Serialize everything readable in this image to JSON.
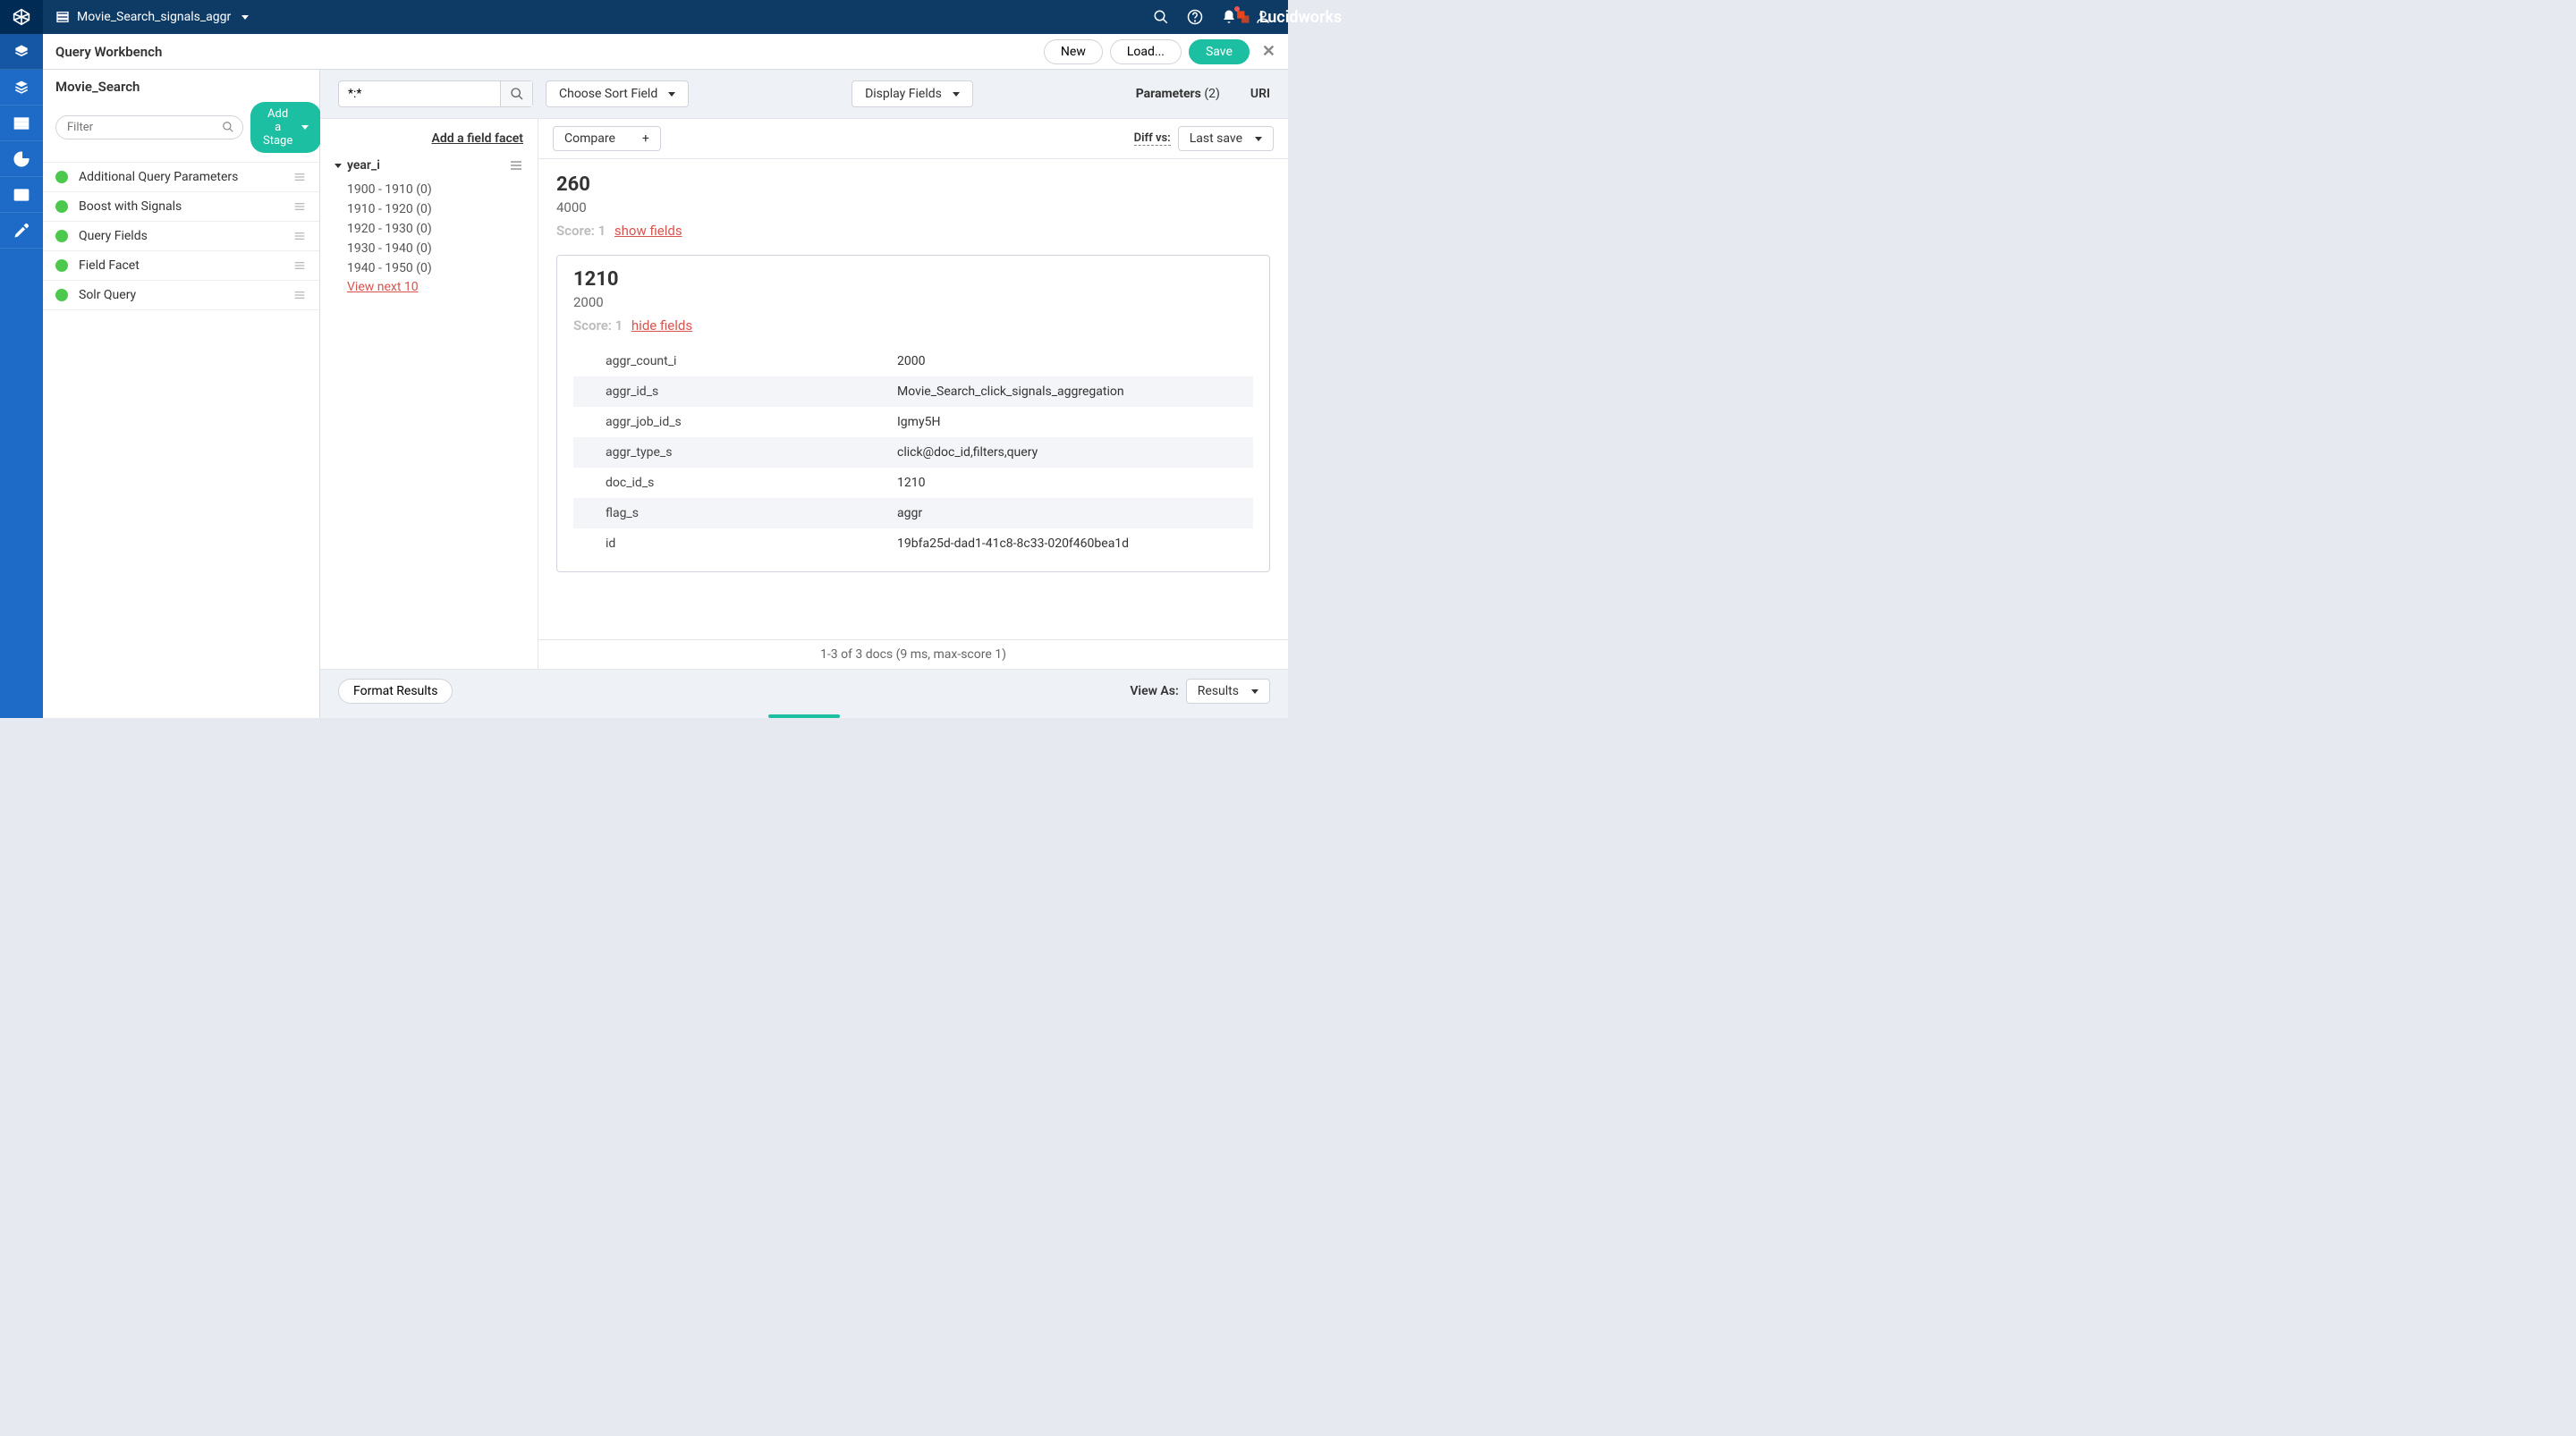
{
  "topbar": {
    "breadcrumb": "Movie_Search_signals_aggr",
    "brand": "Lucidworks"
  },
  "section_header": {
    "title": "Query Workbench",
    "new_btn": "New",
    "load_btn": "Load...",
    "save_btn": "Save"
  },
  "stage_panel": {
    "title": "Movie_Search",
    "filter_placeholder": "Filter",
    "add_stage_btn": "Add a Stage",
    "items": [
      {
        "label": "Additional Query Parameters"
      },
      {
        "label": "Boost with Signals"
      },
      {
        "label": "Query Fields"
      },
      {
        "label": "Field Facet"
      },
      {
        "label": "Solr Query"
      }
    ]
  },
  "wb_controls": {
    "query_value": "*:*",
    "sort_btn": "Choose Sort Field",
    "display_btn": "Display Fields",
    "params_label": "Parameters",
    "params_count": "(2)",
    "uri_label": "URI"
  },
  "facets": {
    "add_label": "Add a field facet",
    "group_label": "year_i",
    "items": [
      "1900 - 1910 (0)",
      "1910 - 1920 (0)",
      "1920 - 1930 (0)",
      "1930 - 1940 (0)",
      "1940 - 1950 (0)"
    ],
    "view_next": "View next 10"
  },
  "results_top": {
    "compare": "Compare",
    "diff_label": "Diff vs:",
    "last_save": "Last save"
  },
  "docs": [
    {
      "id": "260",
      "sub": "4000",
      "score_label": "Score: 1",
      "toggle": "show fields",
      "expanded": false
    },
    {
      "id": "1210",
      "sub": "2000",
      "score_label": "Score: 1",
      "toggle": "hide fields",
      "expanded": true,
      "fields": [
        {
          "k": "aggr_count_i",
          "v": "2000"
        },
        {
          "k": "aggr_id_s",
          "v": "Movie_Search_click_signals_aggregation"
        },
        {
          "k": "aggr_job_id_s",
          "v": "Igmy5H"
        },
        {
          "k": "aggr_type_s",
          "v": "click@doc_id,filters,query"
        },
        {
          "k": "doc_id_s",
          "v": "1210"
        },
        {
          "k": "flag_s",
          "v": "aggr"
        },
        {
          "k": "id",
          "v": "19bfa25d-dad1-41c8-8c33-020f460bea1d"
        }
      ]
    }
  ],
  "results_footer": "1-3 of 3 docs (9 ms, max-score 1)",
  "bottom": {
    "format_btn": "Format Results",
    "viewas_label": "View As:",
    "viewas_value": "Results"
  }
}
